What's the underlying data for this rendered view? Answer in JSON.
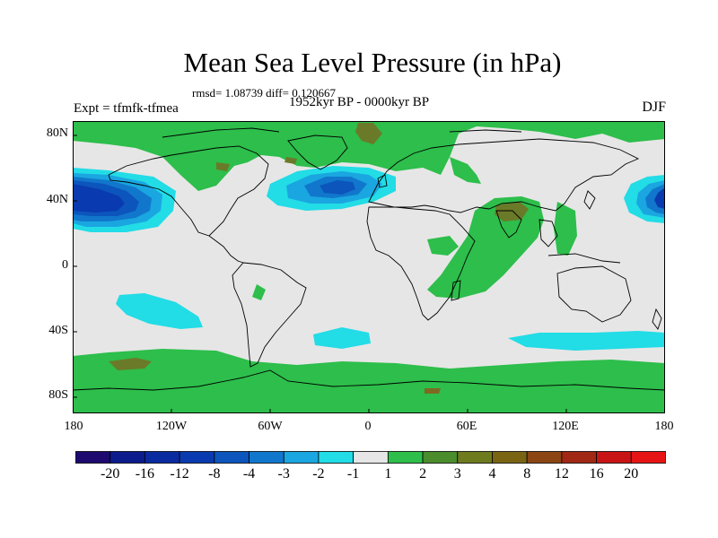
{
  "title": "Mean Sea Level Pressure (in hPa)",
  "stats": "rmsd= 1.08739 diff= 0.120667",
  "period": "1952kyr BP - 0000kyr BP",
  "experiment": "Expt = tfmfk-tfmea",
  "season": "DJF",
  "lat_labels": [
    "80N",
    "40N",
    "0",
    "40S",
    "80S"
  ],
  "lon_labels": [
    "180",
    "120W",
    "60W",
    "0",
    "60E",
    "120E",
    "180"
  ],
  "colorbar": {
    "labels": [
      "-20",
      "-16",
      "-12",
      "-8",
      "-4",
      "-3",
      "-2",
      "-1",
      "1",
      "2",
      "3",
      "4",
      "8",
      "12",
      "16",
      "20"
    ],
    "colors": [
      "#1e0a6e",
      "#0c1c8c",
      "#0a2aa0",
      "#0a3aaf",
      "#0c55bc",
      "#1177cc",
      "#1aa6e0",
      "#22dce6",
      "#e6e6e6",
      "#2dbe4b",
      "#4b8c2d",
      "#6e7a1e",
      "#7a6414",
      "#8c4614",
      "#a02814",
      "#c81414",
      "#e61414"
    ]
  },
  "map_colors": {
    "neutral": "#e6e6e6",
    "green": "#2dbe4b",
    "olive": "#6b7a28",
    "brown": "#7d6a22",
    "cyan": "#22dce6",
    "lightblue": "#1aa6e0",
    "blue": "#1177cc",
    "medblue": "#0c55bc",
    "darkblue": "#0a3aaf",
    "navy": "#0a2aa0"
  }
}
